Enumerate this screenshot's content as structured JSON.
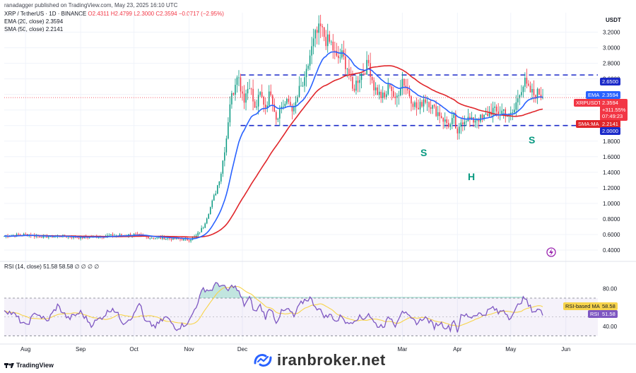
{
  "header": {
    "published": "ranadagger published on TradingView.com, May 23, 2025 16:10 UTC",
    "currency": "USDT"
  },
  "legend": {
    "symbol": "XRP / TetherUS · 1D · BINANCE",
    "ohlc": "O2.4311 H2.4799 L2.3000 C2.3594 −0.0717 (−2.95%)",
    "ema": "EMA (20, close) 2.3594",
    "sma": "SMA (50, close) 2.2141",
    "rsi": "RSI (14, close) 51.58 58.58 ∅ ∅ ∅ ∅"
  },
  "colors": {
    "up": "#089981",
    "down": "#f23645",
    "ema": "#2962ff",
    "sma": "#e0262b",
    "rsi": "#7e57c2",
    "rsi_ma": "#f7d44c",
    "level_line": "#1b2ac9",
    "grid": "#f0f3fa"
  },
  "price_tags": {
    "level_top": "2.6500",
    "ema_label": "EMA",
    "ema_value": "2.3594",
    "symbol_label": "XRPUSDT",
    "symbol_value": "2.3594",
    "change": "+311.55%",
    "countdown": "07:49:23",
    "sma_label": "SMA:MA",
    "sma_value": "2.2141",
    "level_bottom": "2.0000"
  },
  "rsi_tags": {
    "ma_label": "RSI-based MA",
    "ma_value": "58.58",
    "rsi_label": "RSI",
    "rsi_value": "51.58"
  },
  "pattern_labels": {
    "left_shoulder": "S",
    "head": "H",
    "right_shoulder": "S"
  },
  "footer": {
    "watermark": "iranbroker.net",
    "tv": "TradingView"
  },
  "chart_data": {
    "type": "candlestick",
    "title": "XRP / TetherUS · 1D · BINANCE",
    "y_ticks": [
      3.2,
      3.0,
      2.8,
      2.6,
      2.4,
      2.2,
      2.0,
      1.8,
      1.6,
      1.4,
      1.2,
      1.0,
      0.8,
      0.6,
      0.4
    ],
    "y_tick_labels": [
      "3.2000",
      "3.0000",
      "2.8000",
      "2.6000",
      "2.4000",
      "2.2000",
      "2.0000",
      "1.8000",
      "1.6000",
      "1.4000",
      "1.2000",
      "1.0000",
      "0.8000",
      "0.6000",
      "0.4000"
    ],
    "ylim": [
      0.3,
      3.45
    ],
    "x_ticks": [
      {
        "label": "Aug",
        "day": 0
      },
      {
        "label": "Sep",
        "day": 31
      },
      {
        "label": "Oct",
        "day": 61
      },
      {
        "label": "Nov",
        "day": 92
      },
      {
        "label": "Dec",
        "day": 122
      },
      {
        "label": "Mar",
        "day": 212
      },
      {
        "label": "Apr",
        "day": 243
      },
      {
        "label": "May",
        "day": 273
      },
      {
        "label": "Jun",
        "day": 304
      }
    ],
    "xlim": [
      -12,
      322
    ],
    "horizontal_levels": [
      2.65,
      2.0
    ],
    "close_waypoints": [
      [
        -12,
        0.58
      ],
      [
        0,
        0.6
      ],
      [
        10,
        0.57
      ],
      [
        20,
        0.58
      ],
      [
        31,
        0.56
      ],
      [
        45,
        0.58
      ],
      [
        61,
        0.6
      ],
      [
        70,
        0.56
      ],
      [
        80,
        0.55
      ],
      [
        92,
        0.53
      ],
      [
        96,
        0.58
      ],
      [
        100,
        0.7
      ],
      [
        104,
        0.95
      ],
      [
        107,
        1.15
      ],
      [
        110,
        1.4
      ],
      [
        113,
        1.85
      ],
      [
        115,
        2.3
      ],
      [
        117,
        2.45
      ],
      [
        119,
        2.7
      ],
      [
        121,
        2.5
      ],
      [
        123,
        2.35
      ],
      [
        126,
        2.55
      ],
      [
        129,
        2.2
      ],
      [
        132,
        2.4
      ],
      [
        135,
        2.25
      ],
      [
        138,
        2.45
      ],
      [
        141,
        2.1
      ],
      [
        144,
        2.25
      ],
      [
        148,
        2.3
      ],
      [
        151,
        2.2
      ],
      [
        154,
        2.45
      ],
      [
        157,
        2.55
      ],
      [
        160,
        2.9
      ],
      [
        163,
        3.15
      ],
      [
        166,
        3.25
      ],
      [
        169,
        3.1
      ],
      [
        172,
        3.05
      ],
      [
        175,
        2.85
      ],
      [
        178,
        2.9
      ],
      [
        181,
        2.75
      ],
      [
        184,
        2.45
      ],
      [
        187,
        2.6
      ],
      [
        190,
        2.7
      ],
      [
        193,
        2.8
      ],
      [
        196,
        2.5
      ],
      [
        199,
        2.4
      ],
      [
        202,
        2.35
      ],
      [
        205,
        2.55
      ],
      [
        208,
        2.3
      ],
      [
        212,
        2.6
      ],
      [
        215,
        2.45
      ],
      [
        218,
        2.3
      ],
      [
        221,
        2.2
      ],
      [
        224,
        2.35
      ],
      [
        227,
        2.3
      ],
      [
        230,
        2.2
      ],
      [
        233,
        2.15
      ],
      [
        236,
        2.05
      ],
      [
        239,
        2.0
      ],
      [
        241,
        2.1
      ],
      [
        243,
        1.85
      ],
      [
        245,
        2.05
      ],
      [
        248,
        2.1
      ],
      [
        251,
        2.05
      ],
      [
        254,
        2.1
      ],
      [
        257,
        2.08
      ],
      [
        260,
        2.15
      ],
      [
        263,
        2.2
      ],
      [
        266,
        2.15
      ],
      [
        269,
        2.2
      ],
      [
        272,
        2.1
      ],
      [
        275,
        2.2
      ],
      [
        278,
        2.45
      ],
      [
        281,
        2.55
      ],
      [
        283,
        2.45
      ],
      [
        286,
        2.4
      ],
      [
        289,
        2.42
      ],
      [
        291,
        2.3594
      ]
    ],
    "ema_period": 20,
    "sma_period": 50,
    "last_close": 2.3594,
    "ema_last": 2.3594,
    "sma_last": 2.2141,
    "rsi": {
      "ylim": [
        25,
        100
      ],
      "y_ticks": [
        80,
        40
      ],
      "y_tick_labels": [
        "80.00",
        "40.00"
      ],
      "band": [
        30,
        70
      ],
      "values": [
        [
          -12,
          58
        ],
        [
          -6,
          52
        ],
        [
          0,
          40
        ],
        [
          6,
          55
        ],
        [
          12,
          45
        ],
        [
          18,
          62
        ],
        [
          24,
          48
        ],
        [
          31,
          55
        ],
        [
          37,
          42
        ],
        [
          43,
          50
        ],
        [
          49,
          60
        ],
        [
          55,
          44
        ],
        [
          61,
          52
        ],
        [
          64,
          66
        ],
        [
          67,
          45
        ],
        [
          73,
          40
        ],
        [
          79,
          50
        ],
        [
          85,
          38
        ],
        [
          92,
          45
        ],
        [
          96,
          62
        ],
        [
          100,
          80
        ],
        [
          104,
          78
        ],
        [
          108,
          86
        ],
        [
          111,
          82
        ],
        [
          114,
          78
        ],
        [
          117,
          84
        ],
        [
          120,
          76
        ],
        [
          123,
          63
        ],
        [
          126,
          70
        ],
        [
          129,
          55
        ],
        [
          132,
          62
        ],
        [
          135,
          50
        ],
        [
          138,
          60
        ],
        [
          141,
          45
        ],
        [
          144,
          55
        ],
        [
          148,
          58
        ],
        [
          151,
          50
        ],
        [
          154,
          62
        ],
        [
          157,
          68
        ],
        [
          160,
          70
        ],
        [
          163,
          62
        ],
        [
          166,
          56
        ],
        [
          169,
          50
        ],
        [
          172,
          52
        ],
        [
          175,
          45
        ],
        [
          178,
          52
        ],
        [
          181,
          42
        ],
        [
          184,
          46
        ],
        [
          187,
          50
        ],
        [
          190,
          48
        ],
        [
          193,
          54
        ],
        [
          196,
          44
        ],
        [
          199,
          40
        ],
        [
          202,
          42
        ],
        [
          205,
          50
        ],
        [
          208,
          42
        ],
        [
          212,
          58
        ],
        [
          215,
          50
        ],
        [
          218,
          46
        ],
        [
          221,
          44
        ],
        [
          224,
          50
        ],
        [
          227,
          46
        ],
        [
          230,
          40
        ],
        [
          233,
          44
        ],
        [
          236,
          40
        ],
        [
          239,
          38
        ],
        [
          241,
          48
        ],
        [
          243,
          35
        ],
        [
          245,
          50
        ],
        [
          248,
          52
        ],
        [
          251,
          50
        ],
        [
          254,
          54
        ],
        [
          257,
          52
        ],
        [
          260,
          56
        ],
        [
          263,
          60
        ],
        [
          266,
          54
        ],
        [
          269,
          58
        ],
        [
          272,
          50
        ],
        [
          275,
          54
        ],
        [
          278,
          66
        ],
        [
          281,
          70
        ],
        [
          283,
          62
        ],
        [
          286,
          56
        ],
        [
          289,
          58
        ],
        [
          291,
          51.58
        ]
      ],
      "last_rsi": 51.58,
      "last_ma": 58.58
    }
  }
}
